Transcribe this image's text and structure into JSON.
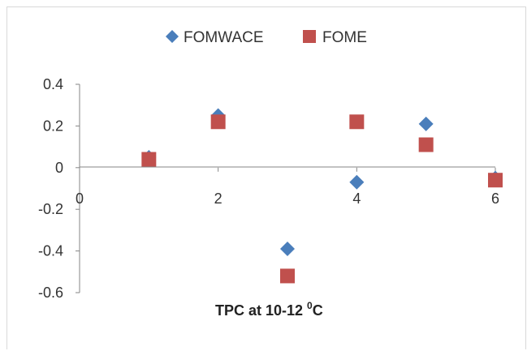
{
  "chart_data": {
    "type": "scatter",
    "title": "",
    "xlabel": "TPC at 10-12 ",
    "xlabel_sup": "0",
    "xlabel_suffix": "C",
    "ylabel": "",
    "xlim": [
      0,
      6
    ],
    "ylim": [
      -0.6,
      0.4
    ],
    "x_ticks": [
      "0",
      "2",
      "4",
      "6"
    ],
    "y_ticks": [
      "0.4",
      "0.2",
      "0",
      "-0.2",
      "-0.4",
      "-0.6"
    ],
    "legend_position": "top",
    "grid": false,
    "series": [
      {
        "name": "FOMWACE",
        "marker": "diamond",
        "color": "#4a7ebb",
        "points": [
          {
            "x": 1,
            "y": 0.05
          },
          {
            "x": 2,
            "y": 0.25
          },
          {
            "x": 3,
            "y": -0.39
          },
          {
            "x": 4,
            "y": -0.07
          },
          {
            "x": 5,
            "y": 0.21
          },
          {
            "x": 6,
            "y": -0.05
          }
        ]
      },
      {
        "name": "FOME",
        "marker": "square",
        "color": "#c0504d",
        "points": [
          {
            "x": 1,
            "y": 0.04
          },
          {
            "x": 2,
            "y": 0.22
          },
          {
            "x": 3,
            "y": -0.52
          },
          {
            "x": 4,
            "y": 0.22
          },
          {
            "x": 5,
            "y": 0.11
          },
          {
            "x": 6,
            "y": -0.06
          }
        ]
      }
    ]
  }
}
